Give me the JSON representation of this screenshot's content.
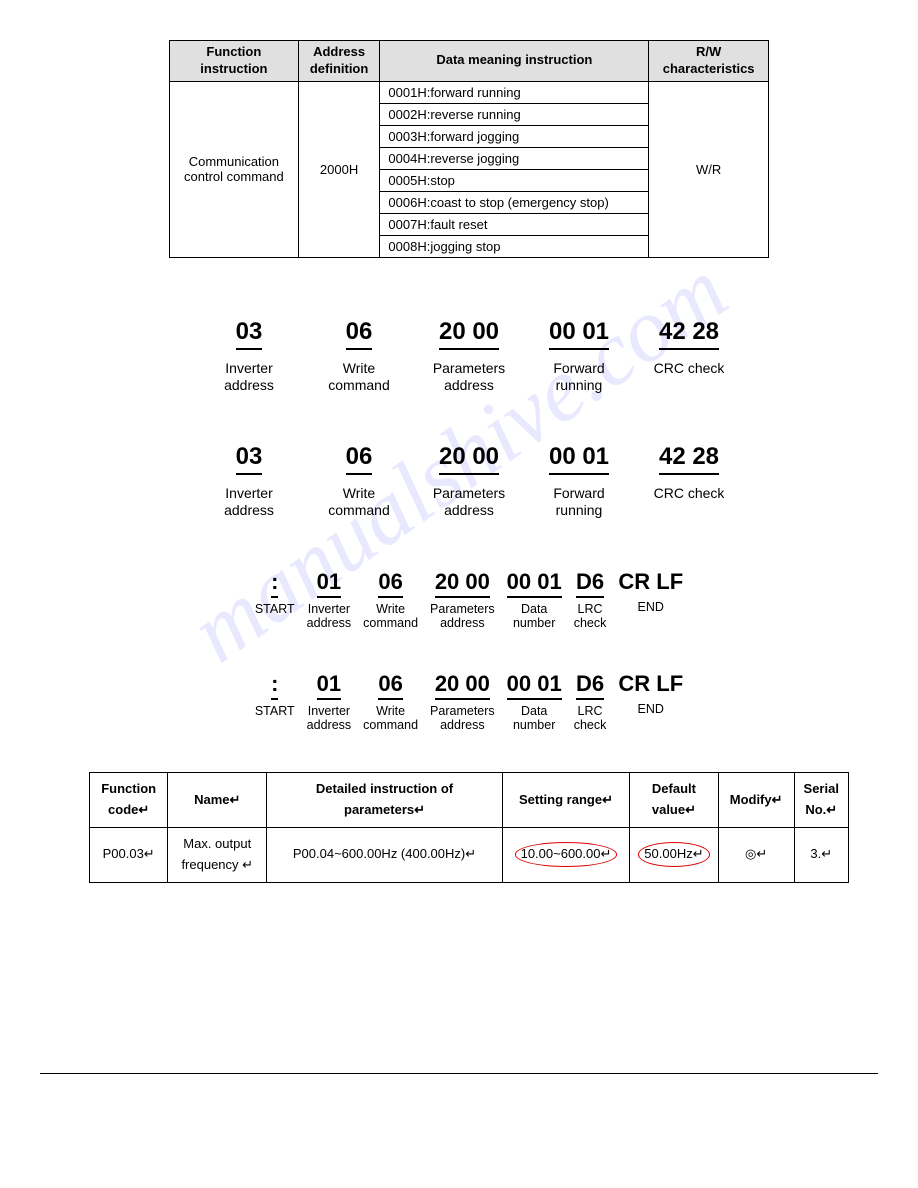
{
  "watermark": "manualshive.com",
  "table1": {
    "headers": {
      "func": "Function\ninstruction",
      "addr": "Address\ndefinition",
      "data": "Data meaning instruction",
      "rw": "R/W\ncharacteristics"
    },
    "func_value": "Communication\ncontrol command",
    "addr_value": "2000H",
    "rw_value": "W/R",
    "data_rows": [
      "0001H:forward running",
      "0002H:reverse running",
      "0003H:forward jogging",
      "0004H:reverse jogging",
      "0005H:stop",
      "0006H:coast to stop (emergency stop)",
      "0007H:fault reset",
      "0008H:jogging stop"
    ]
  },
  "rtu_frames": [
    {
      "fields": [
        {
          "val": "03",
          "lab": "Inverter\naddress"
        },
        {
          "val": "06",
          "lab": "Write\ncommand"
        },
        {
          "val": "20 00",
          "lab": "Parameters\naddress"
        },
        {
          "val": "00 01",
          "lab": "Forward\nrunning"
        },
        {
          "val": "42 28",
          "lab": "CRC check"
        }
      ]
    },
    {
      "fields": [
        {
          "val": "03",
          "lab": "Inverter\naddress"
        },
        {
          "val": "06",
          "lab": "Write\ncommand"
        },
        {
          "val": "20 00",
          "lab": "Parameters\naddress"
        },
        {
          "val": "00 01",
          "lab": "Forward\nrunning"
        },
        {
          "val": "42 28",
          "lab": "CRC check"
        }
      ]
    }
  ],
  "ascii_frames": [
    {
      "fields": [
        {
          "val": ":",
          "lab": "START"
        },
        {
          "val": "01",
          "lab": "Inverter\naddress"
        },
        {
          "val": "06",
          "lab": "Write\ncommand"
        },
        {
          "val": "20 00",
          "lab": "Parameters\naddress"
        },
        {
          "val": "00 01",
          "lab": "Data\nnumber"
        },
        {
          "val": "D6",
          "lab": "LRC\ncheck"
        },
        {
          "val": "CR LF",
          "lab": "END"
        }
      ]
    },
    {
      "fields": [
        {
          "val": ":",
          "lab": "START"
        },
        {
          "val": "01",
          "lab": "Inverter\naddress"
        },
        {
          "val": "06",
          "lab": "Write\ncommand"
        },
        {
          "val": "20 00",
          "lab": "Parameters\naddress"
        },
        {
          "val": "00 01",
          "lab": "Data\nnumber"
        },
        {
          "val": "D6",
          "lab": "LRC\ncheck"
        },
        {
          "val": "CR LF",
          "lab": "END"
        }
      ]
    }
  ],
  "table2": {
    "headers": {
      "code": "Function\ncode↵",
      "name": "Name↵",
      "detail": "Detailed instruction of\nparameters↵",
      "range": "Setting range↵",
      "default": "Default\nvalue↵",
      "modify": "Modify↵",
      "serial": "Serial\nNo.↵"
    },
    "row": {
      "code": "P00.03↵",
      "name": "Max. output\nfrequency ↵",
      "detail": "P00.04~600.00Hz (400.00Hz)↵",
      "range": "10.00~600.00↵",
      "default": "50.00Hz↵",
      "modify": "◎↵",
      "serial": "3.↵"
    }
  }
}
